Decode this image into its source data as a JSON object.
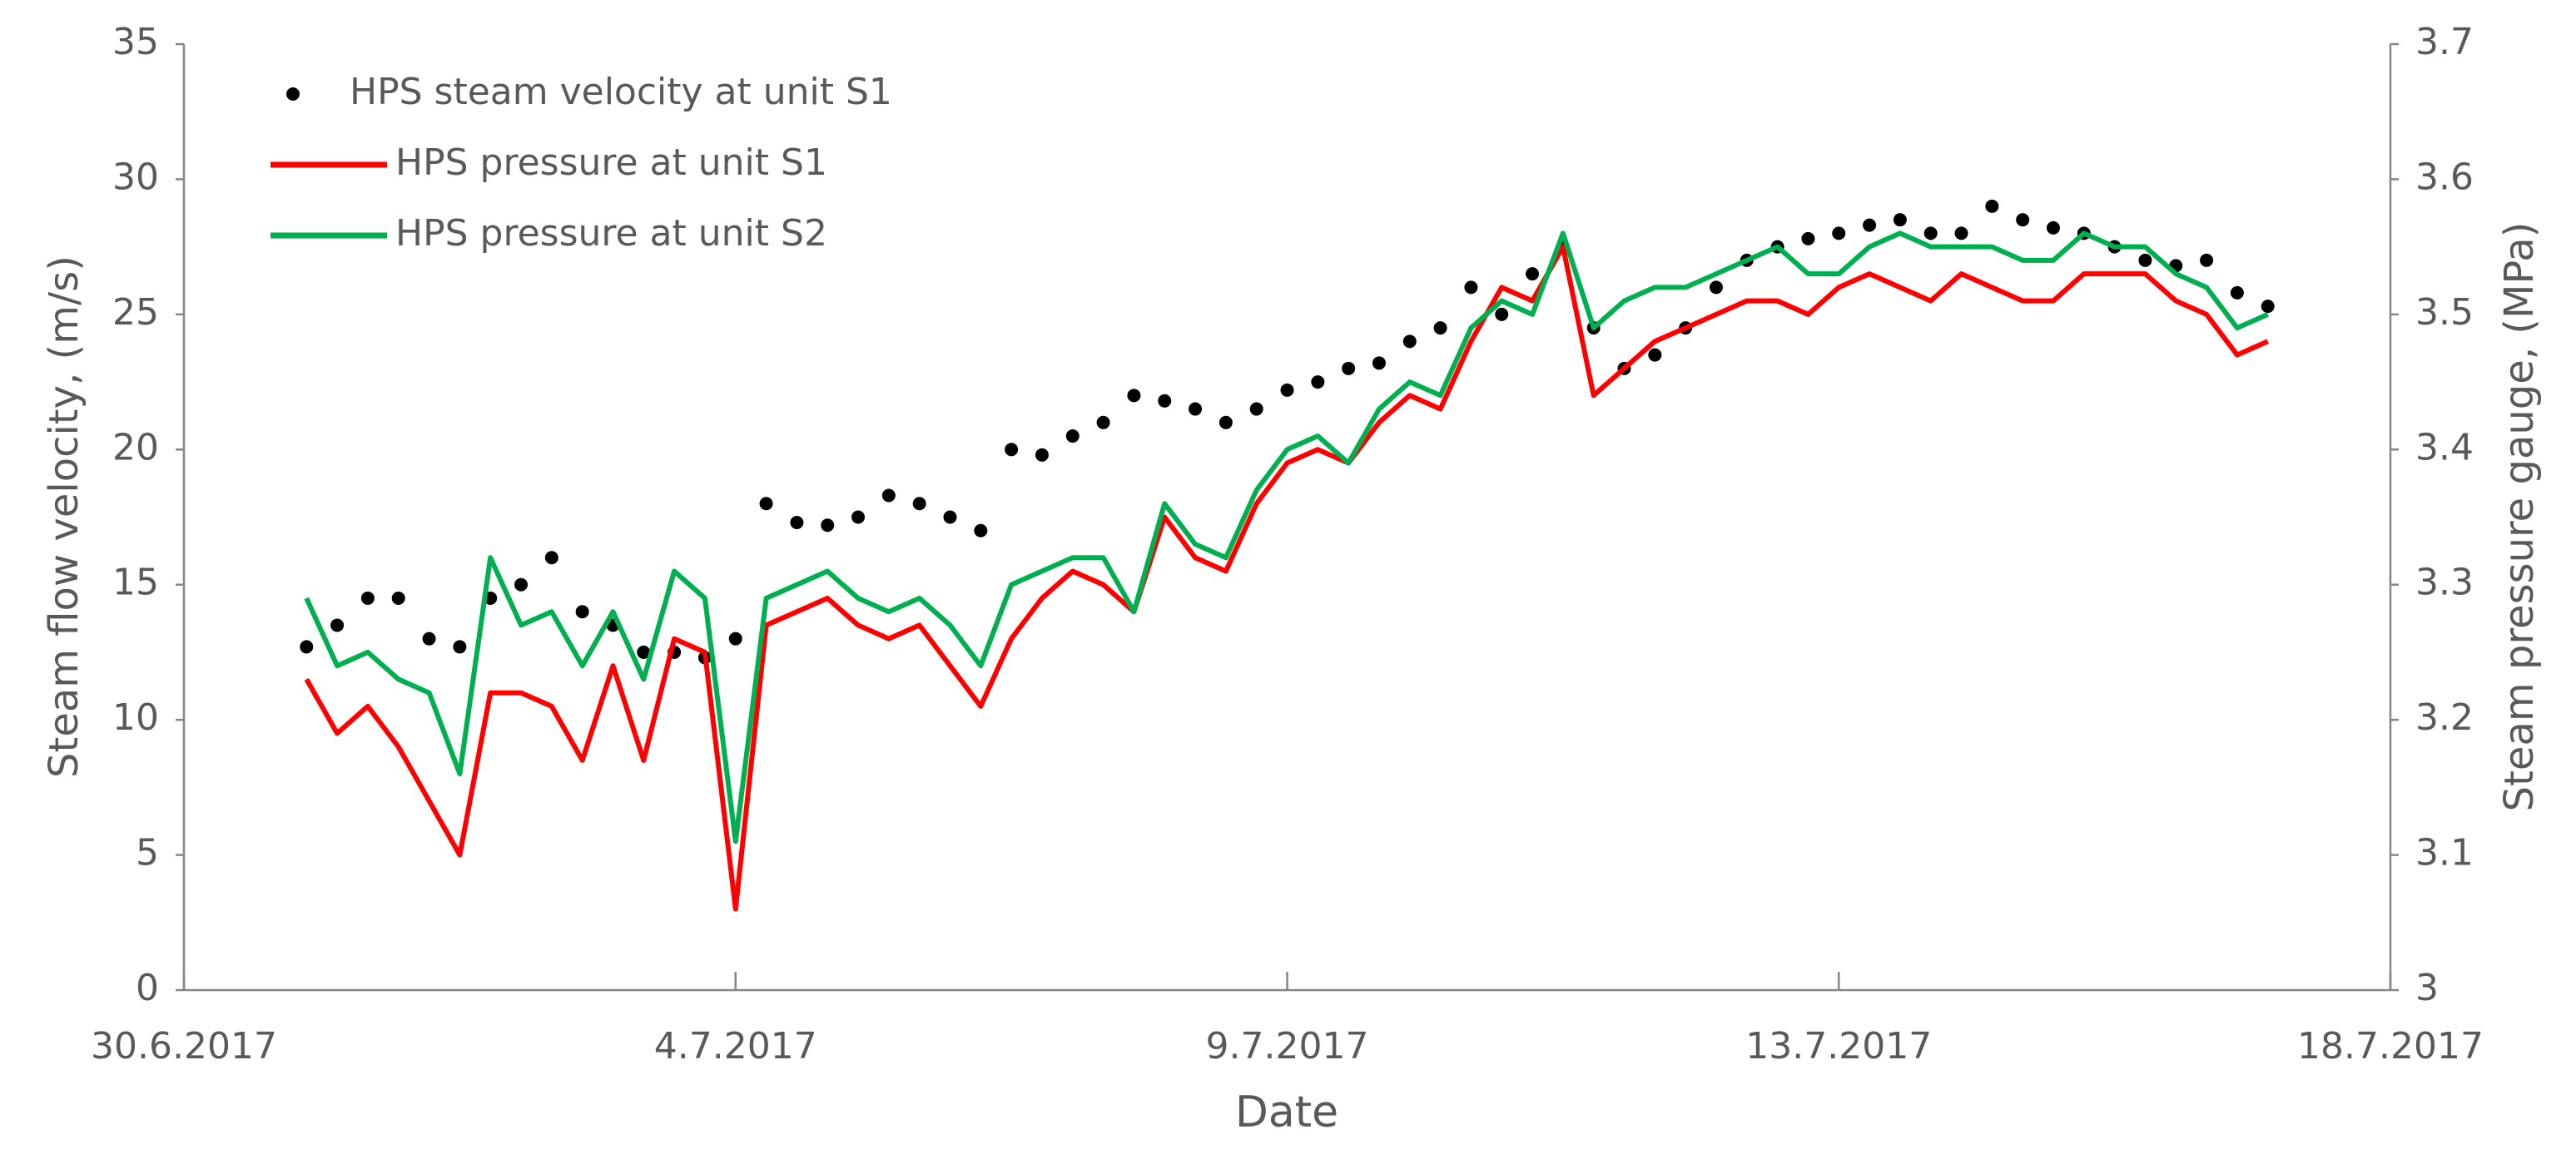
{
  "chart_data": {
    "type": "line",
    "x_label": "Date",
    "y_label": "Steam flow velocity, (m/s)",
    "y2_label": "Steam pressure gauge, (MPa)",
    "legend": "upper left",
    "xlim": [
      0,
      18
    ],
    "xticks": [
      {
        "value": 0,
        "label": "30.6.2017"
      },
      {
        "value": 4.5,
        "label": "4.7.2017"
      },
      {
        "value": 9,
        "label": "9.7.2017"
      },
      {
        "value": 13.5,
        "label": "13.7.2017"
      },
      {
        "value": 18,
        "label": "18.7.2017"
      }
    ],
    "ylim": [
      0,
      35
    ],
    "yticks": [
      0,
      5,
      10,
      15,
      20,
      25,
      30,
      35
    ],
    "y2lim": [
      3,
      3.7
    ],
    "y2ticks": [
      3,
      3.1,
      3.2,
      3.3,
      3.4,
      3.5,
      3.6,
      3.7
    ],
    "x": [
      1,
      1.25,
      1.5,
      1.75,
      2,
      2.25,
      2.5,
      2.75,
      3,
      3.25,
      3.5,
      3.75,
      4,
      4.25,
      4.5,
      4.75,
      5,
      5.25,
      5.5,
      5.75,
      6,
      6.25,
      6.5,
      6.75,
      7,
      7.25,
      7.5,
      7.75,
      8,
      8.25,
      8.5,
      8.75,
      9,
      9.25,
      9.5,
      9.75,
      10,
      10.25,
      10.5,
      10.75,
      11,
      11.25,
      11.5,
      11.75,
      12,
      12.25,
      12.5,
      12.75,
      13,
      13.25,
      13.5,
      13.75,
      14,
      14.25,
      14.5,
      14.75,
      15,
      15.25,
      15.5,
      15.75,
      16,
      16.25,
      16.5,
      16.75,
      17
    ],
    "series": [
      {
        "name": "HPS steam velocity at unit S1",
        "type": "scatter",
        "color": "#000000",
        "values": [
          12.7,
          13.5,
          14.5,
          14.5,
          13.0,
          12.7,
          14.5,
          15.0,
          16.0,
          14.0,
          13.5,
          12.5,
          12.5,
          12.3,
          13.0,
          18.0,
          17.3,
          17.2,
          17.5,
          18.3,
          18.0,
          17.5,
          17.0,
          20.0,
          19.8,
          20.5,
          21.0,
          22.0,
          21.8,
          21.5,
          21.0,
          21.5,
          22.2,
          22.5,
          23.0,
          23.2,
          24.0,
          24.5,
          26.0,
          25.0,
          26.5,
          27.5,
          24.5,
          23.0,
          23.5,
          24.5,
          26.0,
          27.0,
          27.5,
          27.8,
          28.0,
          28.3,
          28.5,
          28.0,
          28.0,
          29.0,
          28.5,
          28.2,
          28.0,
          27.5,
          27.0,
          26.8,
          27.0,
          25.8,
          25.3
        ]
      },
      {
        "name": "HPS pressure at unit S1",
        "type": "line",
        "axis": "y2",
        "color": "#ff0000",
        "values": [
          3.23,
          3.19,
          3.21,
          3.18,
          3.14,
          3.1,
          3.22,
          3.22,
          3.21,
          3.17,
          3.24,
          3.17,
          3.26,
          3.25,
          3.06,
          3.27,
          3.28,
          3.29,
          3.27,
          3.26,
          3.27,
          3.24,
          3.21,
          3.26,
          3.29,
          3.31,
          3.3,
          3.28,
          3.35,
          3.32,
          3.31,
          3.36,
          3.39,
          3.4,
          3.39,
          3.42,
          3.44,
          3.43,
          3.48,
          3.52,
          3.51,
          3.55,
          3.44,
          3.46,
          3.48,
          3.49,
          3.5,
          3.51,
          3.51,
          3.5,
          3.52,
          3.53,
          3.52,
          3.51,
          3.53,
          3.52,
          3.51,
          3.51,
          3.53,
          3.53,
          3.53,
          3.51,
          3.5,
          3.47,
          3.48
        ]
      },
      {
        "name": "HPS pressure at unit S2",
        "type": "line",
        "axis": "y2",
        "color": "#00b050",
        "values": [
          3.29,
          3.24,
          3.25,
          3.23,
          3.22,
          3.16,
          3.32,
          3.27,
          3.28,
          3.24,
          3.28,
          3.23,
          3.31,
          3.29,
          3.11,
          3.29,
          3.3,
          3.31,
          3.29,
          3.28,
          3.29,
          3.27,
          3.24,
          3.3,
          3.31,
          3.32,
          3.32,
          3.28,
          3.36,
          3.33,
          3.32,
          3.37,
          3.4,
          3.41,
          3.39,
          3.43,
          3.45,
          3.44,
          3.49,
          3.51,
          3.5,
          3.56,
          3.49,
          3.51,
          3.52,
          3.52,
          3.53,
          3.54,
          3.55,
          3.53,
          3.53,
          3.55,
          3.56,
          3.55,
          3.55,
          3.55,
          3.54,
          3.54,
          3.56,
          3.55,
          3.55,
          3.53,
          3.52,
          3.49,
          3.5
        ]
      }
    ]
  }
}
